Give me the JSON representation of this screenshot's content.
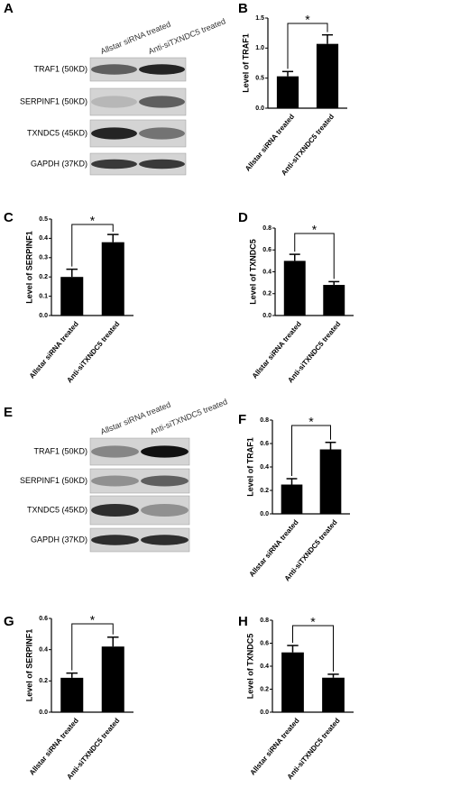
{
  "blots": [
    {
      "panel": "A",
      "lanes": [
        "Allstar siRNA treated",
        "Anti-siTXNDC5 treated"
      ],
      "rows": [
        "TRAF1 (50KD)",
        "SERPINF1 (50KD)",
        "TXNDC5 (45KD)",
        "GAPDH (37KD)"
      ]
    },
    {
      "panel": "E",
      "lanes": [
        "Allstar siRNA treated",
        "Anti-siTXNDC5 treated"
      ],
      "rows": [
        "TRAF1 (50KD)",
        "SERPINF1 (50KD)",
        "TXNDC5 (45KD)",
        "GAPDH (37KD)"
      ]
    }
  ],
  "chart_data": [
    {
      "type": "bar",
      "panel": "B",
      "y_label": "Level of TRAF1",
      "categories": [
        "Allstar siRNA treated",
        "Anti-siTXNDC5 treated"
      ],
      "values": [
        0.53,
        1.07
      ],
      "errors": [
        0.08,
        0.15
      ],
      "color": "#000000",
      "annotation": "*",
      "ylim": [
        0,
        1.5
      ],
      "yticks": [
        {
          "value": 0,
          "label": "0.0"
        },
        {
          "value": 0.5,
          "label": "0.5"
        },
        {
          "value": 1,
          "label": "1.0"
        },
        {
          "value": 1.5,
          "label": "1.5"
        }
      ]
    },
    {
      "type": "bar",
      "panel": "C",
      "y_label": "Level of SERPINF1",
      "categories": [
        "Allstar siRNA treated",
        "Anti-siTXNDC5 treated"
      ],
      "values": [
        0.2,
        0.38
      ],
      "errors": [
        0.04,
        0.04
      ],
      "color": "#000000",
      "annotation": "*",
      "ylim": [
        0,
        0.5
      ],
      "yticks": [
        {
          "value": 0,
          "label": "0.0"
        },
        0.1,
        0.2,
        0.3,
        0.4,
        0.5
      ]
    },
    {
      "type": "bar",
      "panel": "D",
      "y_label": "Level of TXNDC5",
      "categories": [
        "Allstar siRNA treated",
        "Anti-siTXNDC5 treated"
      ],
      "values": [
        0.5,
        0.28
      ],
      "errors": [
        0.06,
        0.03
      ],
      "color": "#000000",
      "annotation": "*",
      "ylim": [
        0,
        0.8
      ],
      "yticks": [
        {
          "value": 0,
          "label": "0.0"
        },
        0.2,
        0.4,
        0.6,
        0.8
      ]
    },
    {
      "type": "bar",
      "panel": "F",
      "y_label": "Level of TRAF1",
      "categories": [
        "Allstar siRNA treated",
        "Anti-siTXNDC5 treated"
      ],
      "values": [
        0.25,
        0.55
      ],
      "errors": [
        0.05,
        0.06
      ],
      "color": "#000000",
      "annotation": "*",
      "ylim": [
        0,
        0.8
      ],
      "yticks": [
        {
          "value": 0,
          "label": "0.0"
        },
        0.2,
        0.4,
        0.6,
        0.8
      ]
    },
    {
      "type": "bar",
      "panel": "G",
      "y_label": "Level of SERPINF1",
      "categories": [
        "Allstar siRNA treated",
        "Anti-siTXNDC5 treated"
      ],
      "values": [
        0.22,
        0.42
      ],
      "errors": [
        0.03,
        0.06
      ],
      "color": "#000000",
      "annotation": "*",
      "ylim": [
        0,
        0.6
      ],
      "yticks": [
        {
          "value": 0,
          "label": "0.0"
        },
        0.2,
        0.4,
        0.6
      ]
    },
    {
      "type": "bar",
      "panel": "H",
      "y_label": "Level of TXNDC5",
      "categories": [
        "Allstar siRNA treated",
        "Anti-siTXNDC5 treated"
      ],
      "values": [
        0.52,
        0.3
      ],
      "errors": [
        0.06,
        0.03
      ],
      "color": "#000000",
      "annotation": "*",
      "ylim": [
        0,
        0.8
      ],
      "yticks": [
        {
          "value": 0,
          "label": "0.0"
        },
        0.2,
        0.4,
        0.6,
        0.8
      ]
    }
  ]
}
